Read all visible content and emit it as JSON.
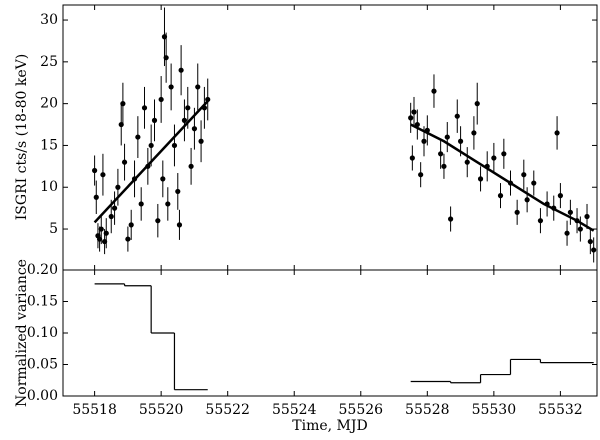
{
  "chart_data": [
    {
      "type": "scatter",
      "ylabel": "ISGRI cts/s (18-80 keV)",
      "color": "#000000",
      "xlim": [
        55517.05,
        55533.1
      ],
      "xticks": [
        55518,
        55520,
        55522,
        55524,
        55526,
        55528,
        55530,
        55532
      ],
      "ylim": [
        0.1,
        31.8
      ],
      "yticks": [
        5,
        10,
        15,
        20,
        25,
        30
      ],
      "points": {
        "x": [
          55518.0,
          55518.05,
          55518.1,
          55518.15,
          55518.2,
          55518.25,
          55518.3,
          55518.35,
          55518.5,
          55518.6,
          55518.7,
          55518.8,
          55518.85,
          55518.9,
          55519.0,
          55519.1,
          55519.2,
          55519.3,
          55519.4,
          55519.5,
          55519.6,
          55519.7,
          55519.8,
          55519.9,
          55520.0,
          55520.05,
          55520.1,
          55520.15,
          55520.2,
          55520.3,
          55520.4,
          55520.5,
          55520.55,
          55520.6,
          55520.7,
          55520.8,
          55520.9,
          55521.0,
          55521.1,
          55521.2,
          55521.3,
          55521.4,
          55527.5,
          55527.55,
          55527.6,
          55527.7,
          55527.8,
          55527.9,
          55528.0,
          55528.2,
          55528.4,
          55528.5,
          55528.6,
          55528.7,
          55528.9,
          55529.0,
          55529.2,
          55529.4,
          55529.5,
          55529.6,
          55529.8,
          55530.0,
          55530.2,
          55530.3,
          55530.5,
          55530.7,
          55530.9,
          55531.0,
          55531.2,
          55531.4,
          55531.6,
          55531.8,
          55531.9,
          55532.0,
          55532.2,
          55532.3,
          55532.5,
          55532.6,
          55532.8,
          55532.9,
          55533.0
        ],
        "values": [
          12,
          8.8,
          4.2,
          3.8,
          5,
          11.5,
          3.5,
          4.5,
          6.5,
          7.5,
          10,
          17.5,
          20,
          13,
          3.8,
          5.5,
          11,
          16,
          8,
          19.5,
          12.5,
          15,
          18,
          6,
          20.5,
          11,
          28,
          25.5,
          8,
          22,
          15,
          9.5,
          5.5,
          24,
          18,
          19.5,
          12.5,
          17,
          22,
          15.5,
          19.5,
          20.5,
          18.3,
          13.5,
          19,
          17.5,
          11.5,
          15.5,
          16.8,
          21.5,
          14,
          12.5,
          16,
          6.2,
          18.5,
          15.5,
          13,
          16.5,
          20,
          11,
          12.5,
          13.5,
          9,
          14,
          10.5,
          7,
          11.5,
          8.5,
          10.5,
          6,
          8,
          7.5,
          16.5,
          9,
          4.5,
          7,
          6,
          5,
          6.5,
          3.5,
          2.5
        ],
        "errors": [
          1.8,
          2,
          1.5,
          1.5,
          1.8,
          2.5,
          1.5,
          1.8,
          2,
          2,
          2.2,
          2.5,
          2.5,
          2.2,
          1.5,
          1.8,
          2.2,
          2.5,
          2,
          2.5,
          2.2,
          2.5,
          2.5,
          2,
          2.8,
          2.2,
          3.5,
          3,
          2,
          2.8,
          2.5,
          2.2,
          1.8,
          3,
          2.5,
          2.5,
          2.2,
          2.5,
          2.8,
          2.5,
          2.5,
          2.5,
          1.8,
          1.5,
          1.8,
          1.8,
          1.5,
          1.8,
          1.8,
          2,
          1.8,
          1.5,
          1.8,
          1.5,
          2,
          1.8,
          1.8,
          2,
          2.5,
          1.5,
          1.8,
          1.8,
          1.5,
          1.8,
          1.5,
          1.5,
          1.8,
          1.5,
          1.5,
          1.5,
          1.5,
          1.5,
          2,
          1.5,
          1.5,
          1.5,
          1.5,
          1.5,
          1.5,
          1.5,
          1.5
        ]
      },
      "fits": [
        {
          "x": [
            55518,
            55521.4
          ],
          "values": [
            5.8,
            20.3
          ]
        },
        {
          "x": [
            55527.5,
            55528.5,
            55529.5,
            55530.5,
            55531.5,
            55532.5,
            55533
          ],
          "values": [
            17.5,
            15.5,
            13,
            10.5,
            8,
            6,
            4.8
          ]
        }
      ]
    },
    {
      "type": "step",
      "xlabel": "Time, MJD",
      "ylabel": "Normalized variance",
      "color": "#000000",
      "xlim": [
        55517.05,
        55533.1
      ],
      "xticks": [
        55518,
        55520,
        55522,
        55524,
        55526,
        55528,
        55530,
        55532
      ],
      "ylim": [
        0,
        0.2
      ],
      "yticks": [
        {
          "value": 0,
          "label": "0.00"
        },
        {
          "value": 0.05,
          "label": "0.05"
        },
        {
          "value": 0.1,
          "label": "0.10"
        },
        {
          "value": 0.15,
          "label": "0.15"
        },
        {
          "value": 0.2,
          "label": "0.20"
        }
      ],
      "segments": [
        {
          "bins": [
            55518,
            55518.9,
            55519.7,
            55520.4,
            55521.4
          ],
          "values": [
            0.178,
            0.175,
            0.1,
            0.01
          ]
        },
        {
          "bins": [
            55527.5,
            55528.7,
            55529.6,
            55530.5,
            55531.4,
            55533
          ],
          "values": [
            0.023,
            0.021,
            0.034,
            0.058,
            0.053
          ]
        }
      ]
    }
  ]
}
